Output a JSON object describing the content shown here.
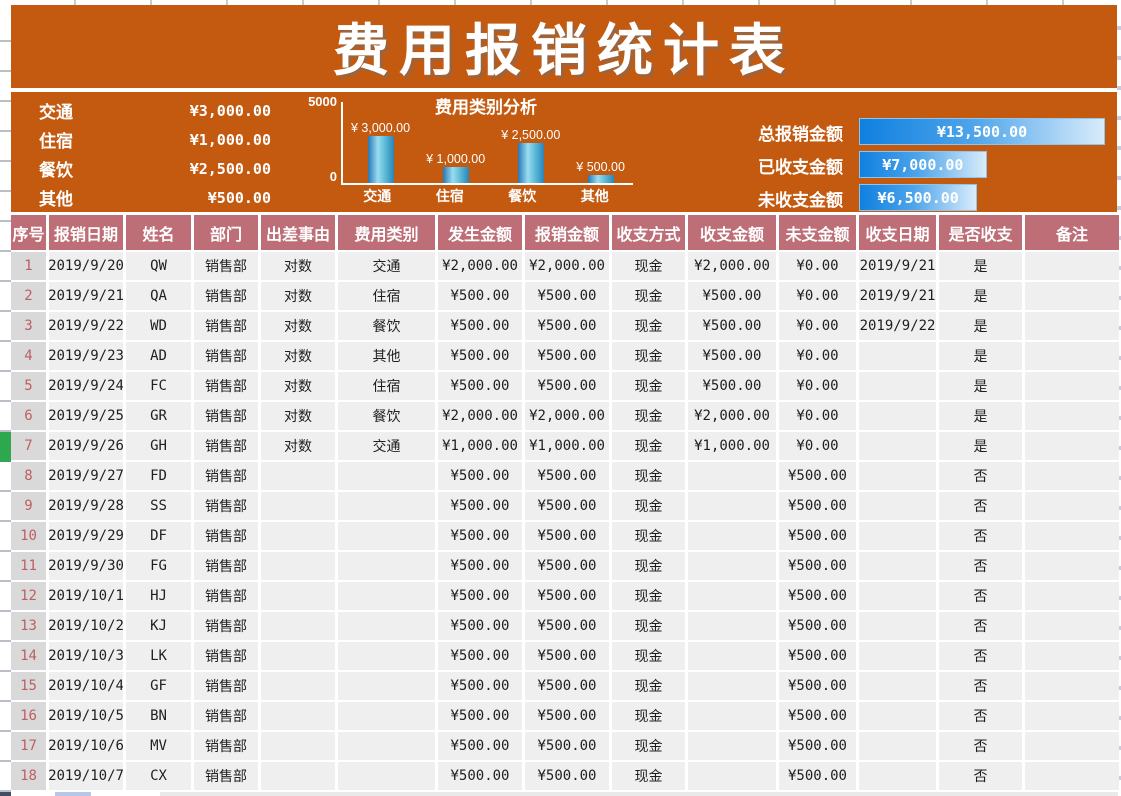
{
  "title": "费用报销统计表",
  "colors": {
    "band_orange": "#c45a10",
    "header_mauve": "#bd6e76",
    "rownum_bg": "#d9d9d9",
    "rownum_text": "#bd5f63",
    "cell_bg": "#efefef",
    "databar_blue": "#1080e0",
    "chart_bar_blue": "#62c0dc",
    "row_marker_green": "#2ea84e"
  },
  "summary": {
    "items": [
      {
        "label": "交通",
        "value": "¥3,000.00"
      },
      {
        "label": "住宿",
        "value": "¥1,000.00"
      },
      {
        "label": "餐饮",
        "value": "¥2,500.00"
      },
      {
        "label": "其他",
        "value": "¥500.00"
      }
    ]
  },
  "chart_data": {
    "type": "bar",
    "title": "费用类别分析",
    "categories": [
      "交通",
      "住宿",
      "餐饮",
      "其他"
    ],
    "values": [
      3000,
      1000,
      2500,
      500
    ],
    "data_labels": [
      "¥ 3,000.00",
      "¥ 1,000.00",
      "¥ 2,500.00",
      "¥ 500.00"
    ],
    "xlabel": "",
    "ylabel": "",
    "ylim": [
      0,
      5000
    ],
    "grid": false,
    "legend": "none"
  },
  "totals": {
    "max": 13500,
    "rows": [
      {
        "label": "总报销金额",
        "display": "¥13,500.00",
        "value": 13500
      },
      {
        "label": "已收支金额",
        "display": "¥7,000.00",
        "value": 7000
      },
      {
        "label": "未收支金额",
        "display": "¥6,500.00",
        "value": 6500
      }
    ]
  },
  "table": {
    "headers": [
      "序号",
      "报销日期",
      "姓名",
      "部门",
      "出差事由",
      "费用类别",
      "发生金额",
      "报销金额",
      "收支方式",
      "收支金额",
      "未支金额",
      "收支日期",
      "是否收支",
      "备注"
    ],
    "rows": [
      [
        "1",
        "2019/9/20",
        "QW",
        "销售部",
        "对数",
        "交通",
        "¥2,000.00",
        "¥2,000.00",
        "现金",
        "¥2,000.00",
        "¥0.00",
        "2019/9/21",
        "是",
        ""
      ],
      [
        "2",
        "2019/9/21",
        "QA",
        "销售部",
        "对数",
        "住宿",
        "¥500.00",
        "¥500.00",
        "现金",
        "¥500.00",
        "¥0.00",
        "2019/9/21",
        "是",
        ""
      ],
      [
        "3",
        "2019/9/22",
        "WD",
        "销售部",
        "对数",
        "餐饮",
        "¥500.00",
        "¥500.00",
        "现金",
        "¥500.00",
        "¥0.00",
        "2019/9/22",
        "是",
        ""
      ],
      [
        "4",
        "2019/9/23",
        "AD",
        "销售部",
        "对数",
        "其他",
        "¥500.00",
        "¥500.00",
        "现金",
        "¥500.00",
        "¥0.00",
        "",
        "是",
        ""
      ],
      [
        "5",
        "2019/9/24",
        "FC",
        "销售部",
        "对数",
        "住宿",
        "¥500.00",
        "¥500.00",
        "现金",
        "¥500.00",
        "¥0.00",
        "",
        "是",
        ""
      ],
      [
        "6",
        "2019/9/25",
        "GR",
        "销售部",
        "对数",
        "餐饮",
        "¥2,000.00",
        "¥2,000.00",
        "现金",
        "¥2,000.00",
        "¥0.00",
        "",
        "是",
        ""
      ],
      [
        "7",
        "2019/9/26",
        "GH",
        "销售部",
        "对数",
        "交通",
        "¥1,000.00",
        "¥1,000.00",
        "现金",
        "¥1,000.00",
        "¥0.00",
        "",
        "是",
        ""
      ],
      [
        "8",
        "2019/9/27",
        "FD",
        "销售部",
        "",
        "",
        "¥500.00",
        "¥500.00",
        "现金",
        "",
        "¥500.00",
        "",
        "否",
        ""
      ],
      [
        "9",
        "2019/9/28",
        "SS",
        "销售部",
        "",
        "",
        "¥500.00",
        "¥500.00",
        "现金",
        "",
        "¥500.00",
        "",
        "否",
        ""
      ],
      [
        "10",
        "2019/9/29",
        "DF",
        "销售部",
        "",
        "",
        "¥500.00",
        "¥500.00",
        "现金",
        "",
        "¥500.00",
        "",
        "否",
        ""
      ],
      [
        "11",
        "2019/9/30",
        "FG",
        "销售部",
        "",
        "",
        "¥500.00",
        "¥500.00",
        "现金",
        "",
        "¥500.00",
        "",
        "否",
        ""
      ],
      [
        "12",
        "2019/10/1",
        "HJ",
        "销售部",
        "",
        "",
        "¥500.00",
        "¥500.00",
        "现金",
        "",
        "¥500.00",
        "",
        "否",
        ""
      ],
      [
        "13",
        "2019/10/2",
        "KJ",
        "销售部",
        "",
        "",
        "¥500.00",
        "¥500.00",
        "现金",
        "",
        "¥500.00",
        "",
        "否",
        ""
      ],
      [
        "14",
        "2019/10/3",
        "LK",
        "销售部",
        "",
        "",
        "¥500.00",
        "¥500.00",
        "现金",
        "",
        "¥500.00",
        "",
        "否",
        ""
      ],
      [
        "15",
        "2019/10/4",
        "GF",
        "销售部",
        "",
        "",
        "¥500.00",
        "¥500.00",
        "现金",
        "",
        "¥500.00",
        "",
        "否",
        ""
      ],
      [
        "16",
        "2019/10/5",
        "BN",
        "销售部",
        "",
        "",
        "¥500.00",
        "¥500.00",
        "现金",
        "",
        "¥500.00",
        "",
        "否",
        ""
      ],
      [
        "17",
        "2019/10/6",
        "MV",
        "销售部",
        "",
        "",
        "¥500.00",
        "¥500.00",
        "现金",
        "",
        "¥500.00",
        "",
        "否",
        ""
      ],
      [
        "18",
        "2019/10/7",
        "CX",
        "销售部",
        "",
        "",
        "¥500.00",
        "¥500.00",
        "现金",
        "",
        "¥500.00",
        "",
        "否",
        ""
      ]
    ]
  }
}
